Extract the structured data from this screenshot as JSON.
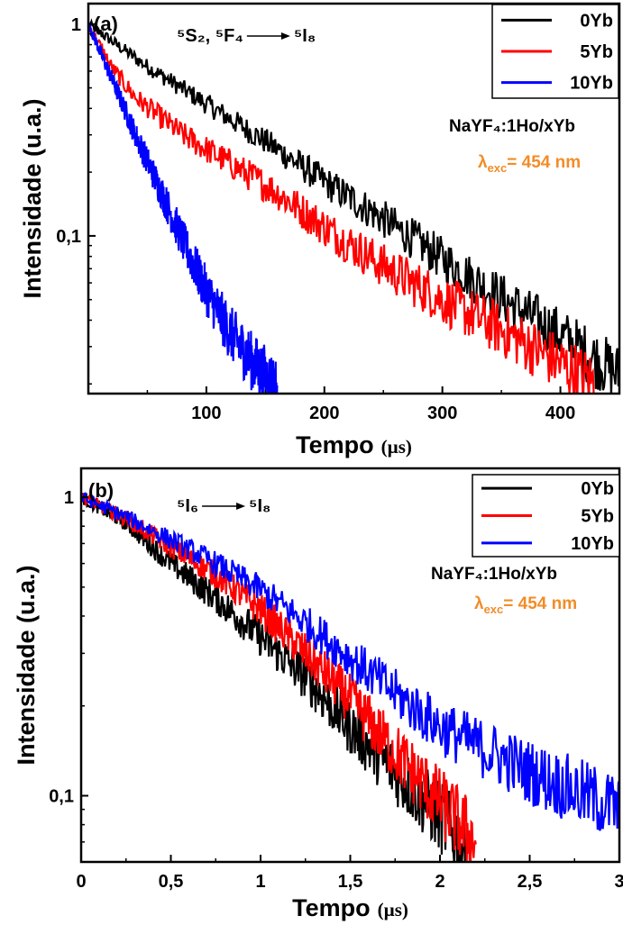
{
  "colors": {
    "0Yb": "#000000",
    "5Yb": "#ff0000",
    "10Yb": "#0000ff",
    "annotation": "#f28c28"
  },
  "chart_data": [
    {
      "panel": "a",
      "type": "line",
      "panel_label": "(a)",
      "transition": {
        "upper": "⁵S₂, ⁵F₄",
        "lower": "⁵I₈"
      },
      "sample_label": "NaYF₄:1Ho/xYb",
      "excitation_label": "λexc= 454 nm",
      "xlabel": "Tempo",
      "xunit": "(µs)",
      "ylabel": "Intensidade (u.a.)",
      "xlim": [
        0,
        450
      ],
      "ylim": [
        0.018,
        1.25
      ],
      "yscale": "log",
      "xticks": [
        100,
        200,
        300,
        400
      ],
      "xtick_labels": [
        "100",
        "200",
        "300",
        "400"
      ],
      "yticks": [
        1,
        0.1
      ],
      "ytick_labels": [
        "1",
        "0,1"
      ],
      "legend_position": "top-right",
      "series": [
        {
          "name": "0Yb",
          "x": [
            0,
            50,
            100,
            150,
            200,
            250,
            300,
            350,
            400,
            450
          ],
          "y": [
            1,
            0.63,
            0.42,
            0.28,
            0.18,
            0.12,
            0.078,
            0.051,
            0.034,
            0.022
          ]
        },
        {
          "name": "5Yb",
          "x": [
            0,
            20,
            40,
            80,
            120,
            160,
            200,
            250,
            300,
            350,
            400,
            430
          ],
          "y": [
            1,
            0.62,
            0.45,
            0.3,
            0.22,
            0.16,
            0.11,
            0.072,
            0.05,
            0.036,
            0.025,
            0.02
          ]
        },
        {
          "name": "10Yb",
          "x": [
            0,
            20,
            40,
            60,
            80,
            100,
            120,
            140,
            160
          ],
          "y": [
            1,
            0.55,
            0.3,
            0.17,
            0.095,
            0.055,
            0.035,
            0.025,
            0.019
          ]
        }
      ]
    },
    {
      "panel": "b",
      "type": "line",
      "panel_label": "(b)",
      "transition": {
        "upper": "⁵I₆",
        "lower": "⁵I₈"
      },
      "sample_label": "NaYF₄:1Ho/xYb",
      "excitation_label": "λexc= 454 nm",
      "xlabel": "Tempo",
      "xunit": "(µs)",
      "ylabel": "Intensidade (u.a.)",
      "xlim": [
        0,
        3
      ],
      "ylim": [
        0.06,
        1.25
      ],
      "yscale": "log",
      "xticks": [
        0,
        0.5,
        1,
        1.5,
        2,
        2.5,
        3
      ],
      "xtick_labels": [
        "0",
        "0,5",
        "1",
        "1,5",
        "2",
        "2,5",
        "3"
      ],
      "yticks": [
        1,
        0.1
      ],
      "ytick_labels": [
        "1",
        "0,1"
      ],
      "legend_position": "top-right",
      "series": [
        {
          "name": "0Yb",
          "x": [
            0,
            0.25,
            0.5,
            0.75,
            1,
            1.25,
            1.5,
            1.75,
            2,
            2.15
          ],
          "y": [
            1,
            0.82,
            0.6,
            0.46,
            0.34,
            0.25,
            0.17,
            0.12,
            0.085,
            0.065
          ]
        },
        {
          "name": "5Yb",
          "x": [
            0,
            0.25,
            0.5,
            0.75,
            1,
            1.25,
            1.5,
            1.75,
            2,
            2.2
          ],
          "y": [
            1,
            0.85,
            0.68,
            0.55,
            0.42,
            0.3,
            0.21,
            0.14,
            0.095,
            0.07
          ]
        },
        {
          "name": "10Yb",
          "x": [
            0,
            0.25,
            0.5,
            0.75,
            1,
            1.25,
            1.5,
            1.75,
            2,
            2.5,
            3
          ],
          "y": [
            1,
            0.86,
            0.72,
            0.6,
            0.49,
            0.38,
            0.29,
            0.22,
            0.17,
            0.12,
            0.09
          ]
        }
      ]
    }
  ]
}
